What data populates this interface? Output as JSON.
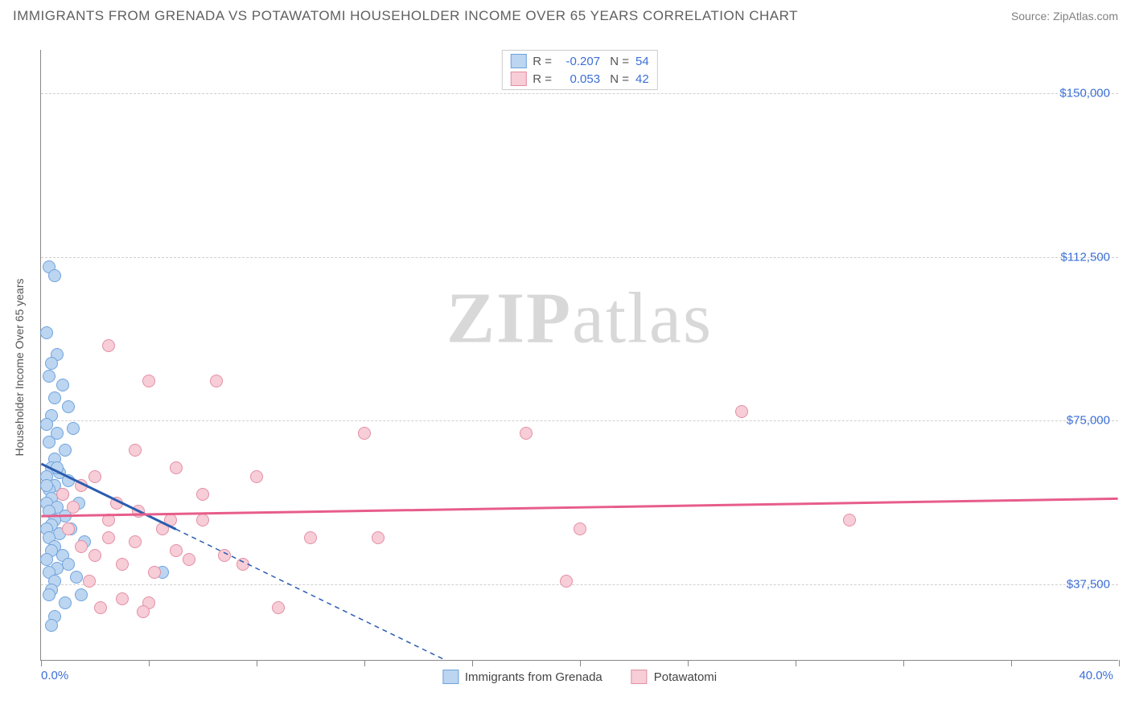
{
  "title": "IMMIGRANTS FROM GRENADA VS POTAWATOMI HOUSEHOLDER INCOME OVER 65 YEARS CORRELATION CHART",
  "source": "Source: ZipAtlas.com",
  "watermark_a": "ZIP",
  "watermark_b": "atlas",
  "chart": {
    "type": "scatter",
    "xlim": [
      0,
      40
    ],
    "ylim": [
      20000,
      160000
    ],
    "x_label_min": "0.0%",
    "x_label_max": "40.0%",
    "ylabel": "Householder Income Over 65 years",
    "ytick_values": [
      37500,
      75000,
      112500,
      150000
    ],
    "ytick_labels": [
      "$37,500",
      "$75,000",
      "$112,500",
      "$150,000"
    ],
    "xtick_values": [
      0,
      4,
      8,
      12,
      16,
      20,
      24,
      28,
      32,
      36,
      40
    ],
    "background_color": "#ffffff",
    "grid_color": "#d0d0d0",
    "series": [
      {
        "name": "Immigrants from Grenada",
        "fill": "#bcd5f0",
        "stroke": "#6fa3de",
        "line_color": "#2a5db0",
        "R": "-0.207",
        "N": "54",
        "trend": {
          "x1": 0,
          "y1": 65000,
          "x2": 5,
          "y2": 50000,
          "x2_ext": 15,
          "y2_ext": 20000
        },
        "points": [
          [
            0.3,
            110000
          ],
          [
            0.5,
            108000
          ],
          [
            0.2,
            95000
          ],
          [
            0.6,
            90000
          ],
          [
            0.4,
            88000
          ],
          [
            0.3,
            85000
          ],
          [
            0.8,
            83000
          ],
          [
            0.5,
            80000
          ],
          [
            1.0,
            78000
          ],
          [
            0.4,
            76000
          ],
          [
            0.2,
            74000
          ],
          [
            0.6,
            72000
          ],
          [
            1.2,
            73000
          ],
          [
            0.3,
            70000
          ],
          [
            0.9,
            68000
          ],
          [
            0.5,
            66000
          ],
          [
            0.4,
            64000
          ],
          [
            0.7,
            63000
          ],
          [
            0.2,
            62000
          ],
          [
            1.0,
            61000
          ],
          [
            0.5,
            60000
          ],
          [
            0.3,
            59000
          ],
          [
            0.8,
            58000
          ],
          [
            0.4,
            57000
          ],
          [
            1.4,
            56000
          ],
          [
            0.2,
            56000
          ],
          [
            0.6,
            55000
          ],
          [
            0.3,
            54000
          ],
          [
            0.9,
            53000
          ],
          [
            0.5,
            52000
          ],
          [
            0.4,
            51000
          ],
          [
            1.1,
            50000
          ],
          [
            0.2,
            50000
          ],
          [
            0.7,
            49000
          ],
          [
            0.3,
            48000
          ],
          [
            1.6,
            47000
          ],
          [
            0.5,
            46000
          ],
          [
            0.4,
            45000
          ],
          [
            0.8,
            44000
          ],
          [
            0.2,
            43000
          ],
          [
            1.0,
            42000
          ],
          [
            0.6,
            41000
          ],
          [
            0.3,
            40000
          ],
          [
            1.3,
            39000
          ],
          [
            4.5,
            40000
          ],
          [
            0.5,
            38000
          ],
          [
            0.4,
            36000
          ],
          [
            1.5,
            35000
          ],
          [
            0.3,
            35000
          ],
          [
            0.9,
            33000
          ],
          [
            0.5,
            30000
          ],
          [
            0.4,
            28000
          ],
          [
            0.2,
            60000
          ],
          [
            0.6,
            64000
          ]
        ]
      },
      {
        "name": "Potawatomi",
        "fill": "#f7cdd7",
        "stroke": "#e38fa4",
        "line_color": "#e75d8a",
        "R": "0.053",
        "N": "42",
        "trend": {
          "x1": 0,
          "y1": 53000,
          "x2": 40,
          "y2": 57000
        },
        "points": [
          [
            2.5,
            92000
          ],
          [
            4.0,
            84000
          ],
          [
            6.5,
            84000
          ],
          [
            26.0,
            77000
          ],
          [
            18.0,
            72000
          ],
          [
            12.0,
            72000
          ],
          [
            3.5,
            68000
          ],
          [
            5.0,
            64000
          ],
          [
            8.0,
            62000
          ],
          [
            2.0,
            62000
          ],
          [
            0.8,
            58000
          ],
          [
            1.5,
            60000
          ],
          [
            2.8,
            56000
          ],
          [
            3.6,
            54000
          ],
          [
            4.8,
            52000
          ],
          [
            6.0,
            52000
          ],
          [
            10.0,
            48000
          ],
          [
            12.5,
            48000
          ],
          [
            20.0,
            50000
          ],
          [
            30.0,
            52000
          ],
          [
            1.2,
            55000
          ],
          [
            2.5,
            52000
          ],
          [
            3.5,
            47000
          ],
          [
            5.0,
            45000
          ],
          [
            6.8,
            44000
          ],
          [
            2.0,
            44000
          ],
          [
            3.0,
            42000
          ],
          [
            4.2,
            40000
          ],
          [
            5.5,
            43000
          ],
          [
            7.5,
            42000
          ],
          [
            19.5,
            38000
          ],
          [
            1.8,
            38000
          ],
          [
            3.0,
            34000
          ],
          [
            4.0,
            33000
          ],
          [
            2.2,
            32000
          ],
          [
            3.8,
            31000
          ],
          [
            8.8,
            32000
          ],
          [
            2.5,
            48000
          ],
          [
            1.0,
            50000
          ],
          [
            1.5,
            46000
          ],
          [
            4.5,
            50000
          ],
          [
            6.0,
            58000
          ]
        ]
      }
    ]
  }
}
